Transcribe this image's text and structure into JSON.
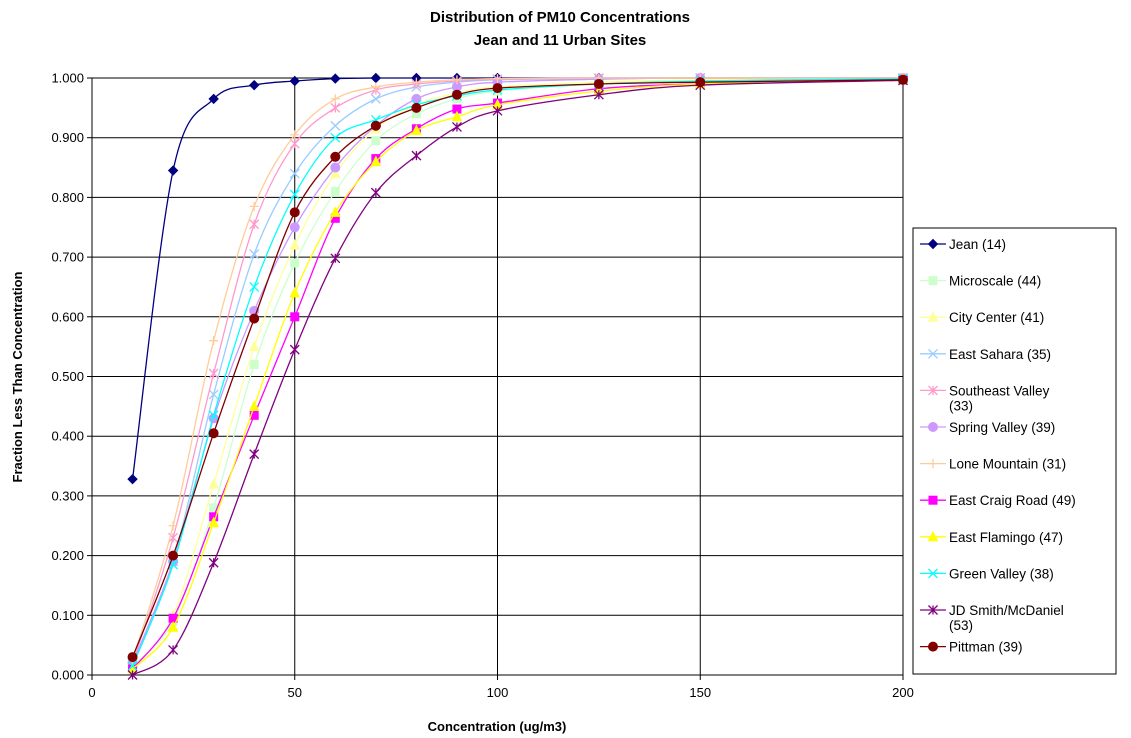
{
  "chart_data": {
    "type": "line",
    "title": "Distribution of PM10 Concentrations",
    "subtitle": "Jean and 11 Urban Sites",
    "xlabel": "Concentration (ug/m3)",
    "ylabel": "Fraction Less Than Concentration",
    "xlim": [
      0,
      200
    ],
    "ylim": [
      0,
      1
    ],
    "x_ticks": [
      "0",
      "50",
      "100",
      "150",
      "200"
    ],
    "y_ticks": [
      "0.000",
      "0.100",
      "0.200",
      "0.300",
      "0.400",
      "0.500",
      "0.600",
      "0.700",
      "0.800",
      "0.900",
      "1.000"
    ],
    "grid": true,
    "legend_position": "right",
    "x": [
      10,
      20,
      30,
      40,
      50,
      60,
      70,
      80,
      90,
      100,
      125,
      150,
      200
    ],
    "series": [
      {
        "name": "Jean (14)",
        "color": "#000080",
        "marker": "diamond",
        "values": [
          0.328,
          0.845,
          0.965,
          0.988,
          0.995,
          0.999,
          1.0,
          1.0,
          1.0,
          1.0,
          1.0,
          1.0,
          1.0
        ]
      },
      {
        "name": "Microscale (44)",
        "color": "#ccffcc",
        "marker": "square",
        "values": [
          0.015,
          0.09,
          0.28,
          0.52,
          0.69,
          0.81,
          0.895,
          0.94,
          0.965,
          0.978,
          0.99,
          0.995,
          0.999
        ]
      },
      {
        "name": "City Center (41)",
        "color": "#ffff99",
        "marker": "triangle",
        "values": [
          0.01,
          0.1,
          0.32,
          0.55,
          0.72,
          0.84,
          0.915,
          0.955,
          0.975,
          0.985,
          0.993,
          0.997,
          1.0
        ]
      },
      {
        "name": "East Sahara (35)",
        "color": "#99ccff",
        "marker": "x",
        "values": [
          0.015,
          0.19,
          0.47,
          0.705,
          0.84,
          0.92,
          0.965,
          0.985,
          0.993,
          0.997,
          0.999,
          1.0,
          1.0
        ]
      },
      {
        "name": "Southeast Valley (33)",
        "color": "#ff99cc",
        "marker": "star",
        "values": [
          0.02,
          0.23,
          0.505,
          0.755,
          0.89,
          0.95,
          0.98,
          0.99,
          0.995,
          0.998,
          1.0,
          1.0,
          1.0
        ]
      },
      {
        "name": "Spring Valley (39)",
        "color": "#cc99ff",
        "marker": "circle",
        "values": [
          0.02,
          0.19,
          0.43,
          0.61,
          0.75,
          0.85,
          0.92,
          0.965,
          0.985,
          0.993,
          0.998,
          1.0,
          1.0
        ]
      },
      {
        "name": "Lone Mountain (31)",
        "color": "#ffcc99",
        "marker": "plus",
        "values": [
          0.025,
          0.25,
          0.56,
          0.785,
          0.905,
          0.965,
          0.985,
          0.993,
          0.997,
          0.999,
          1.0,
          1.0,
          1.0
        ]
      },
      {
        "name": "East Craig Road (49)",
        "color": "#ff00ff",
        "marker": "square",
        "values": [
          0.01,
          0.095,
          0.265,
          0.435,
          0.6,
          0.765,
          0.865,
          0.915,
          0.948,
          0.958,
          0.982,
          0.99,
          0.997
        ]
      },
      {
        "name": "East Flamingo (47)",
        "color": "#ffff00",
        "marker": "triangle",
        "values": [
          0.01,
          0.08,
          0.255,
          0.45,
          0.64,
          0.775,
          0.86,
          0.912,
          0.935,
          0.955,
          0.978,
          0.99,
          0.998
        ]
      },
      {
        "name": "Green Valley (38)",
        "color": "#00ffff",
        "marker": "x",
        "values": [
          0.015,
          0.185,
          0.435,
          0.65,
          0.805,
          0.9,
          0.93,
          0.955,
          0.97,
          0.98,
          0.99,
          0.995,
          0.999
        ]
      },
      {
        "name": "JD Smith/McDaniel (53)",
        "color": "#800080",
        "marker": "star",
        "values": [
          0.0,
          0.042,
          0.188,
          0.37,
          0.545,
          0.698,
          0.808,
          0.87,
          0.918,
          0.945,
          0.972,
          0.988,
          0.996
        ]
      },
      {
        "name": "Pittman (39)",
        "color": "#800000",
        "marker": "circle",
        "values": [
          0.03,
          0.2,
          0.405,
          0.597,
          0.775,
          0.868,
          0.92,
          0.95,
          0.972,
          0.983,
          0.99,
          0.993,
          0.997
        ]
      }
    ]
  }
}
